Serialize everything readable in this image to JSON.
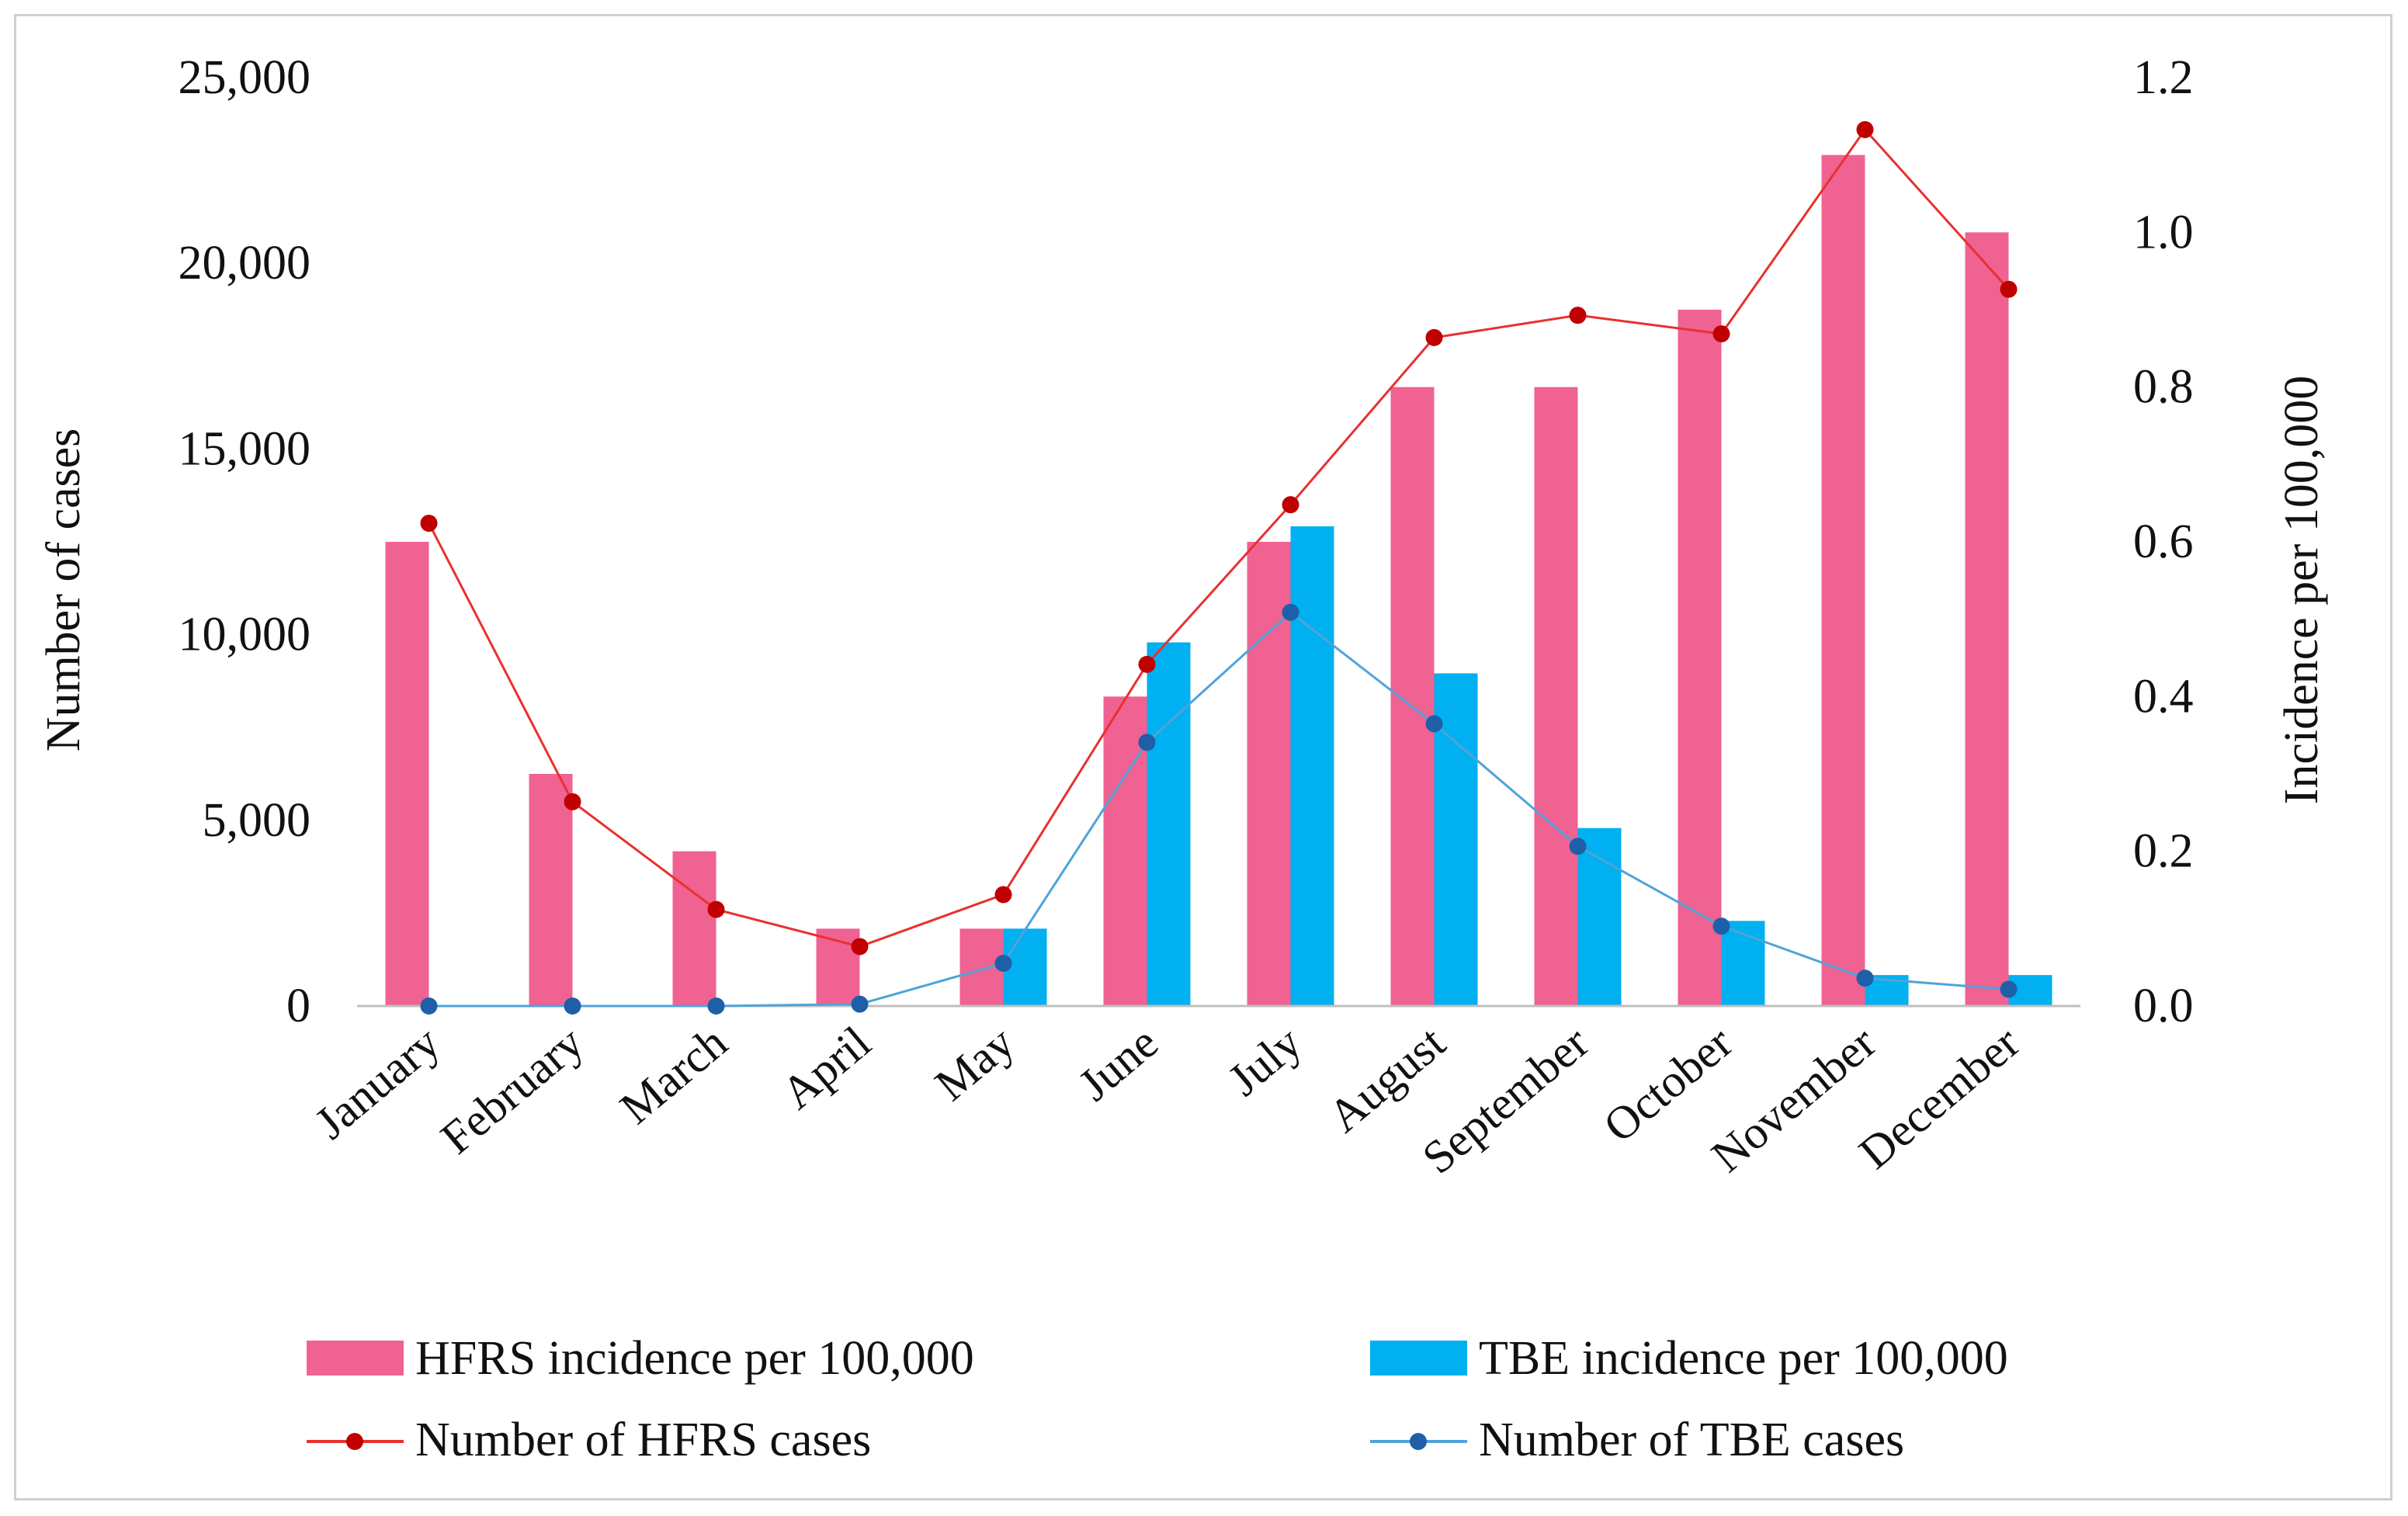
{
  "chart_data": {
    "type": "bar+line",
    "categories": [
      "January",
      "February",
      "March",
      "April",
      "May",
      "June",
      "July",
      "August",
      "September",
      "October",
      "November",
      "December"
    ],
    "left_axis": {
      "label": "Number of cases",
      "ylim": [
        0,
        25000
      ],
      "ticks": [
        0,
        5000,
        10000,
        15000,
        20000,
        25000
      ],
      "tick_labels": [
        "0",
        "5,000",
        "10,000",
        "15,000",
        "20,000",
        "25,000"
      ]
    },
    "right_axis": {
      "label": "Incidence  per 100,000",
      "ylim": [
        0,
        1.2
      ],
      "ticks": [
        0,
        0.2,
        0.4,
        0.6,
        0.8,
        1.0,
        1.2
      ],
      "tick_labels": [
        "0.0",
        "0.2",
        "0.4",
        "0.6",
        "0.8",
        "1.0",
        "1.2"
      ]
    },
    "series": [
      {
        "name": "HFRS incidence per 100,000",
        "kind": "bar",
        "axis": "right",
        "color": "#f06292",
        "values": [
          0.6,
          0.3,
          0.2,
          0.1,
          0.1,
          0.4,
          0.6,
          0.8,
          0.8,
          0.9,
          1.1,
          1.0
        ]
      },
      {
        "name": "TBE incidence per 100,000",
        "kind": "bar",
        "axis": "right",
        "color": "#00b0f0",
        "values": [
          0.0,
          0.0,
          0.0,
          0.0,
          0.1,
          0.47,
          0.62,
          0.43,
          0.23,
          0.11,
          0.04,
          0.04
        ]
      },
      {
        "name": "Number of HFRS cases",
        "kind": "line",
        "axis": "left",
        "color": "#e8312f",
        "marker": "#c00000",
        "values": [
          13000,
          5500,
          2600,
          1600,
          3000,
          9200,
          13500,
          18000,
          18600,
          18100,
          23600,
          19300
        ]
      },
      {
        "name": "Number of TBE cases",
        "kind": "line",
        "axis": "left",
        "color": "#4fa3d9",
        "marker": "#1f5fa8",
        "values": [
          0,
          0,
          0,
          50,
          1150,
          7100,
          10600,
          7600,
          4300,
          2150,
          750,
          450
        ]
      }
    ],
    "legend": {
      "position": "bottom",
      "items": [
        "HFRS incidence per 100,000",
        "TBE incidence per 100,000",
        "Number of HFRS cases",
        "Number of TBE cases"
      ]
    }
  }
}
